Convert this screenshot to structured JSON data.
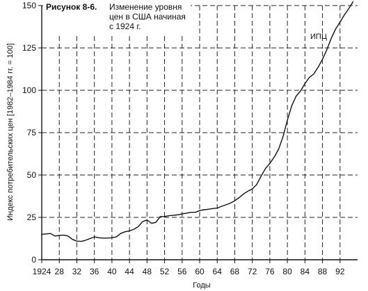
{
  "chart_data": {
    "type": "line",
    "figure_label": "Рисунок 8-6.",
    "title_lines": [
      "Изменение уровня",
      "цен в США начиная",
      "с 1924 г."
    ],
    "xlabel": "Годы",
    "ylabel": "Индекс потребительских цен [1982–1984 гг. = 100]",
    "xlim": [
      1924,
      1996
    ],
    "ylim": [
      0,
      150
    ],
    "x_ticks": [
      1924,
      1928,
      1932,
      1936,
      1940,
      1944,
      1948,
      1952,
      1956,
      1960,
      1964,
      1968,
      1972,
      1976,
      1980,
      1984,
      1988,
      1992
    ],
    "x_tick_labels": [
      "1924",
      "28",
      "32",
      "36",
      "40",
      "44",
      "48",
      "52",
      "56",
      "60",
      "64",
      "68",
      "72",
      "76",
      "80",
      "84",
      "88",
      "92"
    ],
    "y_ticks": [
      0,
      25,
      50,
      75,
      100,
      125,
      150
    ],
    "y_tick_labels": [
      "0",
      "25",
      "50",
      "75",
      "100",
      "125",
      "150"
    ],
    "grid": true,
    "series": [
      {
        "name": "ИПЦ",
        "x": [
          1924,
          1926,
          1927,
          1928,
          1929,
          1930,
          1931,
          1932,
          1933,
          1934,
          1935,
          1936,
          1937,
          1938,
          1939,
          1940,
          1941,
          1942,
          1943,
          1944,
          1945,
          1946,
          1947,
          1948,
          1949,
          1950,
          1951,
          1952,
          1953,
          1954,
          1955,
          1956,
          1957,
          1958,
          1959,
          1960,
          1961,
          1962,
          1963,
          1964,
          1965,
          1966,
          1967,
          1968,
          1969,
          1970,
          1971,
          1972,
          1973,
          1974,
          1975,
          1976,
          1977,
          1978,
          1979,
          1980,
          1981,
          1982,
          1983,
          1984,
          1985,
          1986,
          1987,
          1988,
          1989,
          1990,
          1991,
          1992,
          1993,
          1994,
          1995
        ],
        "values": [
          15,
          15.5,
          14,
          14.3,
          14.5,
          14,
          12,
          11,
          10.8,
          11.5,
          12.5,
          13.5,
          13,
          12.8,
          12.8,
          13,
          13.5,
          15.5,
          16.5,
          17,
          18,
          19.5,
          22.5,
          23.5,
          21.5,
          22,
          25.5,
          25.5,
          26,
          26.2,
          26.5,
          27,
          27.5,
          28,
          28,
          29,
          29.5,
          29.8,
          30.2,
          30.5,
          31.5,
          32.4,
          33.4,
          34.8,
          36.7,
          38.8,
          40.5,
          41.8,
          44.4,
          49.3,
          53.8,
          56.9,
          60.6,
          65.2,
          72.6,
          82.4,
          90.9,
          96.5,
          99.6,
          103.9,
          107.6,
          109.6,
          113.6,
          118.3,
          124,
          130.7,
          136.2,
          140.3,
          144.5,
          148.2,
          152.4
        ]
      }
    ]
  }
}
